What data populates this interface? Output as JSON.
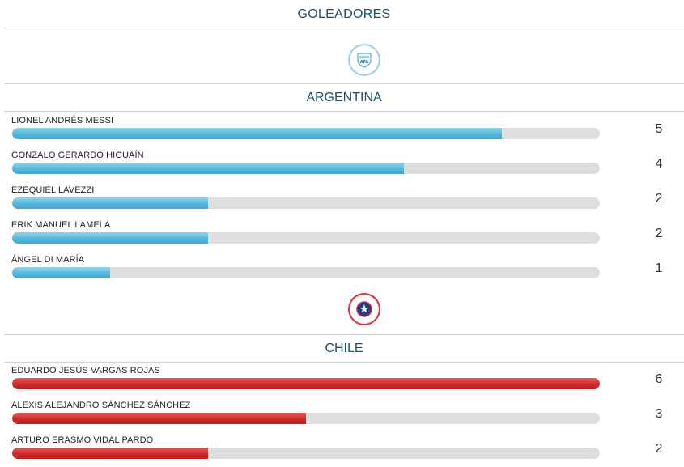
{
  "section_title": "GOLEADORES",
  "max_goals": 6,
  "teams": {
    "argentina": {
      "name": "ARGENTINA",
      "crest_icon": "afa-crest-icon",
      "accent_color": "#53b7dc",
      "players": [
        {
          "name": "LIONEL ANDRÉS MESSI",
          "goals": "5"
        },
        {
          "name": "GONZALO GERARDO HIGUAÍN",
          "goals": "4"
        },
        {
          "name": "EZEQUIEL LAVEZZI",
          "goals": "2"
        },
        {
          "name": "ERIK MANUEL LAMELA",
          "goals": "2"
        },
        {
          "name": "ÁNGEL DI MARÍA",
          "goals": "1"
        }
      ]
    },
    "chile": {
      "name": "CHILE",
      "crest_icon": "anfp-crest-icon",
      "accent_color": "#cf2a2a",
      "players": [
        {
          "name": "EDUARDO JESÚS VARGAS ROJAS",
          "goals": "6"
        },
        {
          "name": "ALEXIS ALEJANDRO SÁNCHEZ SÁNCHEZ",
          "goals": "3"
        },
        {
          "name": "ARTURO ERASMO VIDAL PARDO",
          "goals": "2"
        }
      ]
    }
  }
}
